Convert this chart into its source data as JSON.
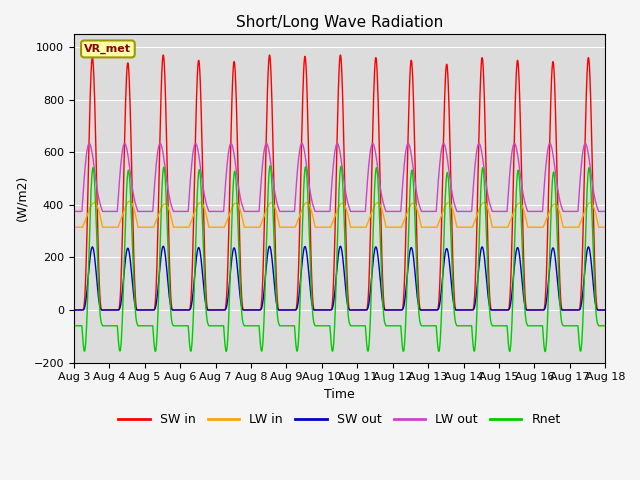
{
  "title": "Short/Long Wave Radiation",
  "ylabel": "(W/m2)",
  "xlabel": "Time",
  "ylim": [
    -200,
    1050
  ],
  "yticks": [
    -200,
    0,
    200,
    400,
    600,
    800,
    1000
  ],
  "plot_bg": "#dcdcdc",
  "fig_bg": "#f5f5f5",
  "station_label": "VR_met",
  "n_days": 15,
  "start_day": 3,
  "series": {
    "SW_in": {
      "color": "#ff0000",
      "label": "SW in"
    },
    "LW_in": {
      "color": "#ffa500",
      "label": "LW in"
    },
    "SW_out": {
      "color": "#0000cc",
      "label": "SW out"
    },
    "LW_out": {
      "color": "#cc44cc",
      "label": "LW out"
    },
    "Rnet": {
      "color": "#00cc00",
      "label": "Rnet"
    }
  },
  "legend": [
    "SW in",
    "LW in",
    "SW out",
    "LW out",
    "Rnet"
  ],
  "legend_colors": [
    "#ff0000",
    "#ffa500",
    "#0000cc",
    "#cc44cc",
    "#00cc00"
  ]
}
